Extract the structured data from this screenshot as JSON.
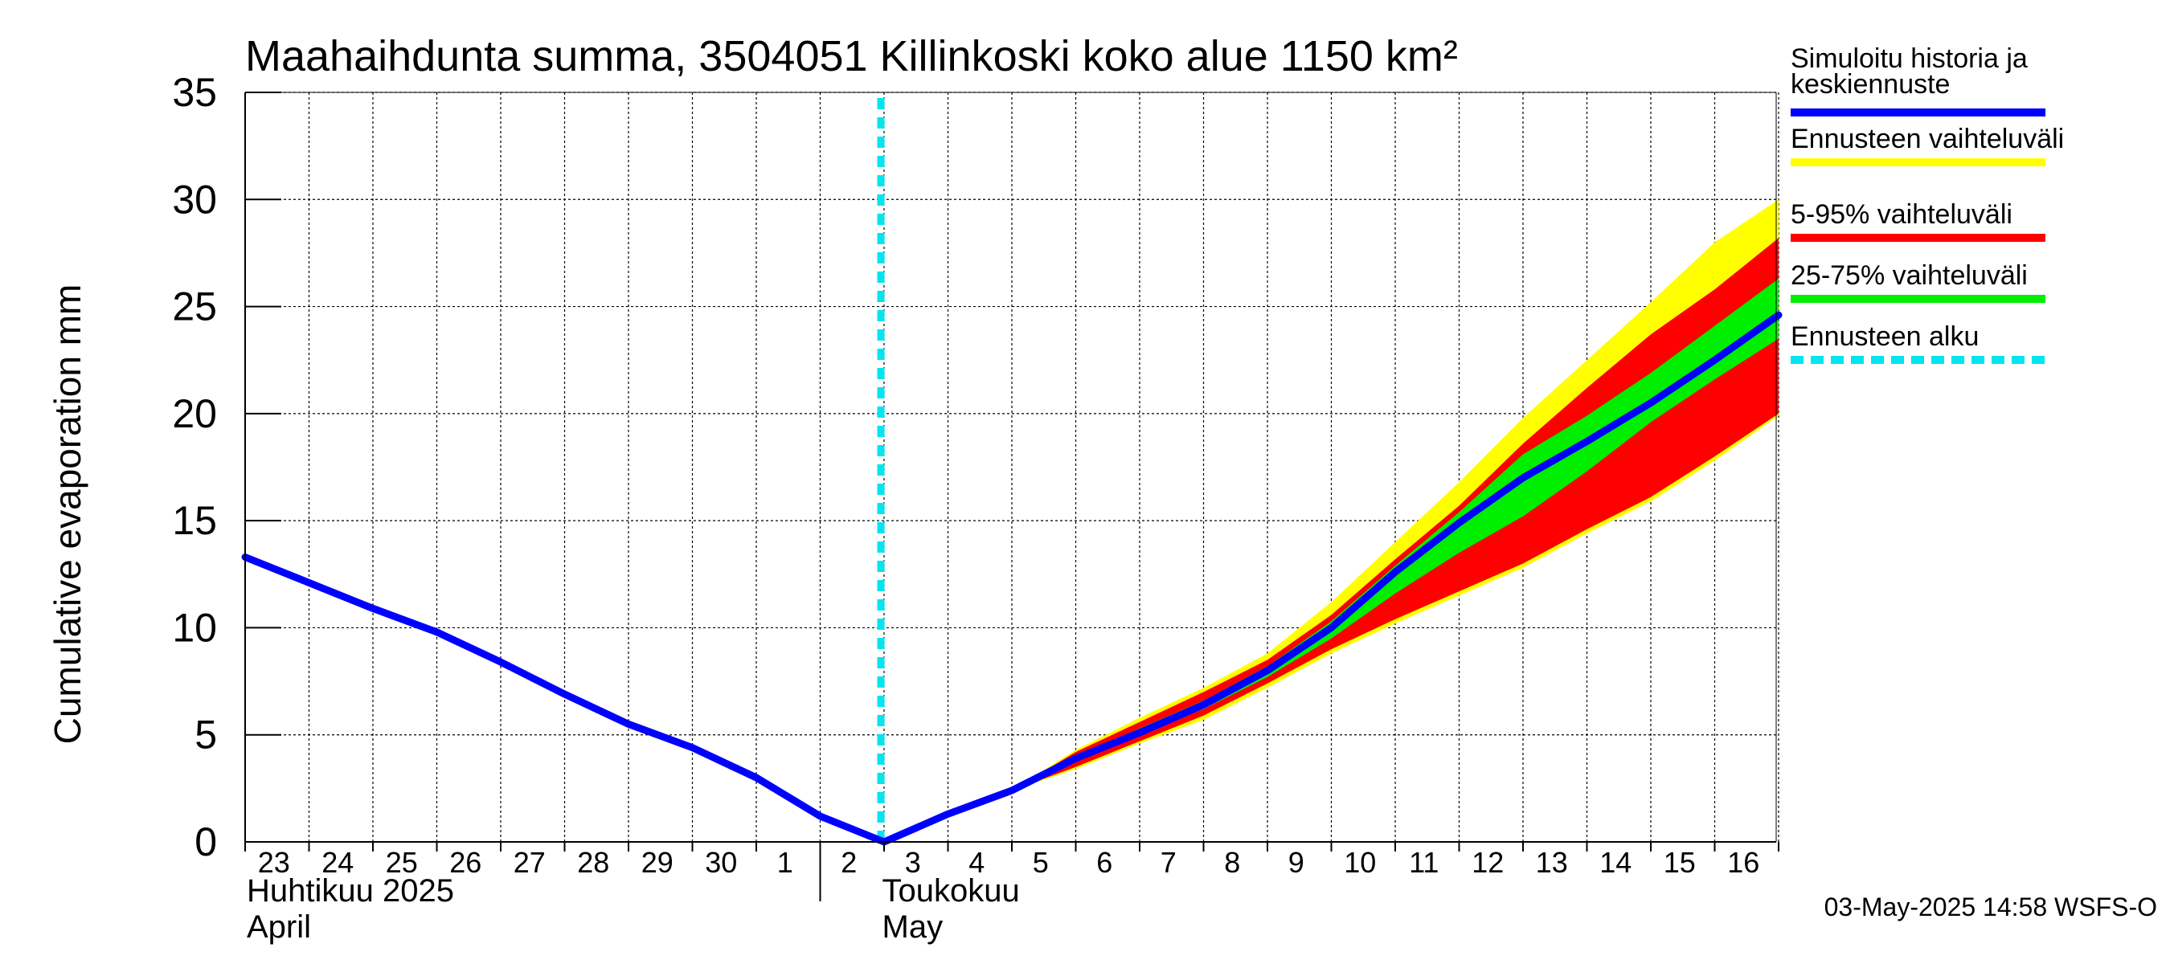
{
  "chart_data": {
    "type": "line",
    "title": "Maahaihdunta summa, 3504051 Killinkoski koko alue 1150 km²",
    "ylabel": "Cumulative evaporation   mm",
    "xlabel": "",
    "ylim": [
      0,
      35
    ],
    "yticks": [
      "0",
      "5",
      "10",
      "15",
      "20",
      "25",
      "30",
      "35"
    ],
    "grid": true,
    "x_start": "2025-04-23",
    "x_end": "2025-05-16",
    "day_labels": [
      "23",
      "24",
      "25",
      "26",
      "27",
      "28",
      "29",
      "30",
      "1",
      "2",
      "3",
      "4",
      "5",
      "6",
      "7",
      "8",
      "9",
      "10",
      "11",
      "12",
      "13",
      "14",
      "15",
      "16"
    ],
    "month_labels": [
      {
        "line1": "Huhtikuu  2025",
        "line2": "April",
        "start": "2025-04-23"
      },
      {
        "line1": "Toukokuu",
        "line2": "May",
        "start": "2025-05-02"
      }
    ],
    "forecast_start": "2025-05-03",
    "series": [
      {
        "name": "Simuloitu historia ja keskiennuste",
        "color": "#0000ff",
        "x": [
          "2025-04-23",
          "2025-04-24",
          "2025-04-25",
          "2025-04-26",
          "2025-04-27",
          "2025-04-28",
          "2025-04-29",
          "2025-04-30",
          "2025-05-01",
          "2025-05-02",
          "2025-05-03",
          "2025-05-04",
          "2025-05-05",
          "2025-05-06",
          "2025-05-07",
          "2025-05-08",
          "2025-05-09",
          "2025-05-10",
          "2025-05-11",
          "2025-05-12",
          "2025-05-13",
          "2025-05-14",
          "2025-05-15",
          "2025-05-16",
          "2025-05-17"
        ],
        "values": [
          13.3,
          12.1,
          10.9,
          9.8,
          8.4,
          6.9,
          5.5,
          4.4,
          3.0,
          1.2,
          0.0,
          1.3,
          2.4,
          3.9,
          5.1,
          6.4,
          8.0,
          10.0,
          12.6,
          14.9,
          17.0,
          18.7,
          20.5,
          22.5,
          24.6
        ]
      }
    ],
    "bands": [
      {
        "name": "Ennusteen vaihteluväli",
        "color": "#ffff00",
        "x": [
          "2025-05-05",
          "2025-05-06",
          "2025-05-07",
          "2025-05-08",
          "2025-05-09",
          "2025-05-10",
          "2025-05-11",
          "2025-05-12",
          "2025-05-13",
          "2025-05-14",
          "2025-05-15",
          "2025-05-16",
          "2025-05-17"
        ],
        "lower": [
          2.4,
          3.4,
          4.6,
          5.7,
          7.2,
          8.8,
          10.2,
          11.5,
          12.8,
          14.4,
          15.9,
          17.8,
          19.9
        ],
        "upper": [
          2.4,
          4.3,
          5.8,
          7.2,
          8.8,
          11.2,
          14.0,
          16.8,
          19.8,
          22.5,
          25.2,
          28.0,
          30.0
        ]
      },
      {
        "name": "5-95% vaihteluväli",
        "color": "#ff0000",
        "x": [
          "2025-05-05",
          "2025-05-06",
          "2025-05-07",
          "2025-05-08",
          "2025-05-09",
          "2025-05-10",
          "2025-05-11",
          "2025-05-12",
          "2025-05-13",
          "2025-05-14",
          "2025-05-15",
          "2025-05-16",
          "2025-05-17"
        ],
        "lower": [
          2.4,
          3.5,
          4.7,
          5.9,
          7.4,
          9.0,
          10.4,
          11.7,
          13.0,
          14.6,
          16.1,
          18.0,
          20.0
        ],
        "upper": [
          2.4,
          4.2,
          5.6,
          7.0,
          8.5,
          10.6,
          13.2,
          15.7,
          18.6,
          21.2,
          23.7,
          25.8,
          28.2
        ]
      },
      {
        "name": "25-75% vaihteluväli",
        "color": "#00ee00",
        "x": [
          "2025-05-05",
          "2025-05-06",
          "2025-05-07",
          "2025-05-08",
          "2025-05-09",
          "2025-05-10",
          "2025-05-11",
          "2025-05-12",
          "2025-05-13",
          "2025-05-14",
          "2025-05-15",
          "2025-05-16",
          "2025-05-17"
        ],
        "lower": [
          2.4,
          3.8,
          5.0,
          6.2,
          7.7,
          9.5,
          11.6,
          13.5,
          15.2,
          17.3,
          19.6,
          21.6,
          23.5
        ],
        "upper": [
          2.4,
          4.0,
          5.3,
          6.6,
          8.2,
          10.3,
          12.9,
          15.4,
          18.1,
          19.9,
          21.9,
          24.1,
          26.3
        ]
      }
    ],
    "legend": {
      "placement": "right",
      "items": [
        {
          "label": "Simuloitu historia ja",
          "label2": "keskiennuste",
          "color": "#0000ff",
          "style": "line"
        },
        {
          "label": "Ennusteen vaihteluväli",
          "label2": "",
          "color": "#ffff00",
          "style": "line"
        },
        {
          "label": "5-95% vaihteluväli",
          "label2": "",
          "color": "#ff0000",
          "style": "line"
        },
        {
          "label": "25-75% vaihteluväli",
          "label2": "",
          "color": "#00ee00",
          "style": "line"
        },
        {
          "label": "Ennusteen alku",
          "label2": "",
          "color": "#00e5ee",
          "style": "dashed"
        }
      ]
    }
  },
  "footer": "03-May-2025 14:58 WSFS-O"
}
